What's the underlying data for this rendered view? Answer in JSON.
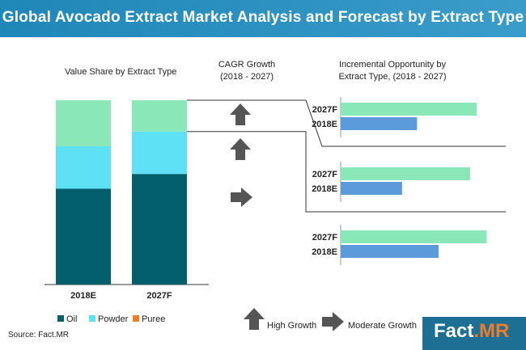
{
  "header": {
    "title": "Global Avocado Extract Market Analysis and Forecast by Extract Type"
  },
  "colors": {
    "oil": "#035f6b",
    "powder": "#5ee0f5",
    "puree": "#8ae8b8",
    "bar_2027": "#8ae8b8",
    "bar_2018": "#5b9bdb",
    "arrow": "#555555",
    "header": "#2a8fc0"
  },
  "left_panel": {
    "title": "Value Share by Extract Type"
  },
  "cagr": {
    "title_line1": "CAGR Growth",
    "title_line2": "(2018 - 2027)",
    "icons": [
      "high-growth-arrow",
      "high-growth-arrow",
      "moderate-growth-arrow"
    ]
  },
  "opportunity": {
    "title_line1": "Incremental Opportunity by",
    "title_line2": "Extract Type, (2018 - 2027)"
  },
  "legend": {
    "items": [
      {
        "label": "Oil",
        "color": "#035f6b"
      },
      {
        "label": "Powder",
        "color": "#5ee0f5"
      },
      {
        "label": "Puree",
        "color": "#f07b2a"
      }
    ],
    "high_growth": "High Growth",
    "moderate_growth": "Moderate Growth"
  },
  "source": "Source: Fact.MR",
  "logo": {
    "part1": "Fact",
    "part2": ".MR"
  },
  "chart_data": [
    {
      "type": "bar",
      "stacked": true,
      "title": "Value Share by Extract Type",
      "categories": [
        "2018E",
        "2027F"
      ],
      "series": [
        {
          "name": "Oil",
          "values": [
            52,
            60
          ]
        },
        {
          "name": "Powder",
          "values": [
            23,
            23
          ]
        },
        {
          "name": "Puree",
          "values": [
            25,
            17
          ]
        }
      ],
      "ylim": [
        0,
        100
      ]
    },
    {
      "type": "bar",
      "orientation": "horizontal",
      "title": "Incremental Opportunity by Extract Type, (2018 - 2027)",
      "groups": [
        {
          "bars": [
            {
              "label": "2027F",
              "value": 82
            },
            {
              "label": "2018E",
              "value": 46
            }
          ]
        },
        {
          "bars": [
            {
              "label": "2027F",
              "value": 78
            },
            {
              "label": "2018E",
              "value": 37
            }
          ]
        },
        {
          "bars": [
            {
              "label": "2027F",
              "value": 88
            },
            {
              "label": "2018E",
              "value": 59
            }
          ]
        }
      ],
      "xlim": [
        0,
        100
      ]
    }
  ]
}
